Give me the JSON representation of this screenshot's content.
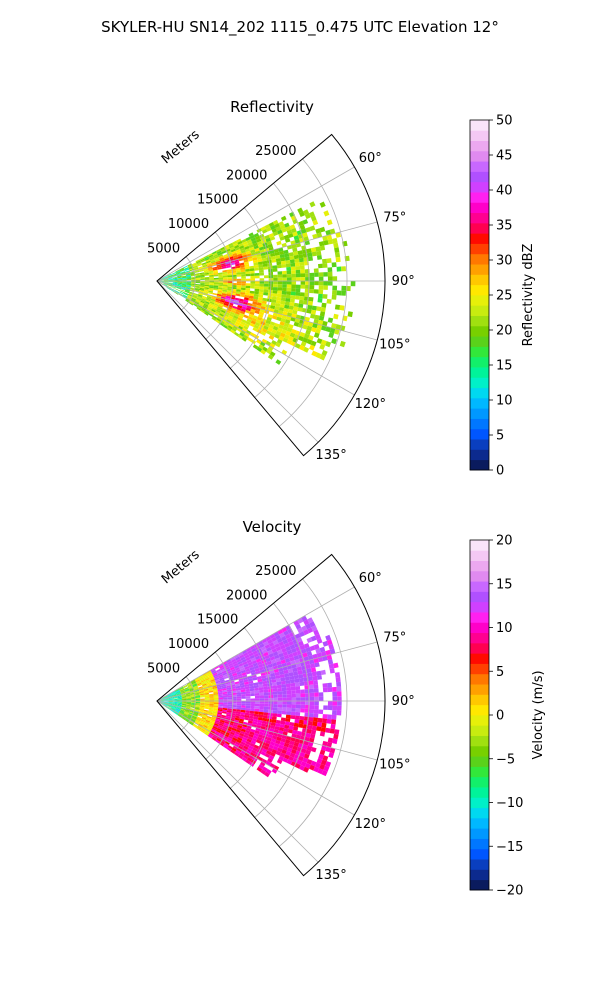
{
  "figure": {
    "title": "SKYLER-HU  SN14_202  1115_0.475 UTC Elevation 12°"
  },
  "chart_data": [
    {
      "type": "heatmap",
      "projection": "polar-sector",
      "title": "Reflectivity",
      "radial_label": "Meters",
      "radial_ticks": [
        5000,
        10000,
        15000,
        20000,
        25000
      ],
      "radial_tick_labels": [
        "5000",
        "10000",
        "15000",
        "20000",
        "25000"
      ],
      "rlim": [
        0,
        30000
      ],
      "angle_ticks": [
        60,
        75,
        90,
        105,
        120,
        135
      ],
      "angle_tick_labels": [
        "60°",
        "75°",
        "90°",
        "105°",
        "120°",
        "135°"
      ],
      "theta_range": [
        50,
        140
      ],
      "grid": true,
      "colorbar": {
        "label": "Reflectivity dBZ",
        "range": [
          0,
          50
        ],
        "ticks": [
          0,
          5,
          10,
          15,
          20,
          25,
          30,
          35,
          40,
          45,
          50
        ],
        "tick_labels": [
          "0",
          "5",
          "10",
          "15",
          "20",
          "25",
          "30",
          "35",
          "40",
          "45",
          "50"
        ],
        "colormap": "NWSRef",
        "colors": [
          "#0a1b5e",
          "#0c2a8e",
          "#0a3fbf",
          "#0056ff",
          "#0077ff",
          "#0098ff",
          "#00b8ff",
          "#00d8f0",
          "#00f0c8",
          "#00f39a",
          "#12f06a",
          "#32e83a",
          "#5ad21a",
          "#78d000",
          "#a0e010",
          "#c8ec10",
          "#e6f00a",
          "#ffe800",
          "#ffc800",
          "#ffa000",
          "#ff7800",
          "#ff4000",
          "#ff0a00",
          "#ff0050",
          "#ff0090",
          "#ff00c8",
          "#ff20f0",
          "#d040ff",
          "#b050ff",
          "#c868ff",
          "#e08af0",
          "#eca8f0",
          "#f4c8f4",
          "#fae4fa"
        ]
      }
    },
    {
      "type": "heatmap",
      "projection": "polar-sector",
      "title": "Velocity",
      "radial_label": "Meters",
      "radial_ticks": [
        5000,
        10000,
        15000,
        20000,
        25000
      ],
      "radial_tick_labels": [
        "5000",
        "10000",
        "15000",
        "20000",
        "25000"
      ],
      "rlim": [
        0,
        30000
      ],
      "angle_ticks": [
        60,
        75,
        90,
        105,
        120,
        135
      ],
      "angle_tick_labels": [
        "60°",
        "75°",
        "90°",
        "105°",
        "120°",
        "135°"
      ],
      "theta_range": [
        50,
        140
      ],
      "grid": true,
      "colorbar": {
        "label": "Velocity (m/s)",
        "range": [
          -20,
          20
        ],
        "ticks": [
          -20,
          -15,
          -10,
          -5,
          0,
          5,
          10,
          15,
          20
        ],
        "tick_labels": [
          "−20",
          "−15",
          "−10",
          "−5",
          "0",
          "5",
          "10",
          "15",
          "20"
        ],
        "colormap": "NWSRef",
        "colors": [
          "#0a1b5e",
          "#0c2a8e",
          "#0a3fbf",
          "#0056ff",
          "#0077ff",
          "#0098ff",
          "#00b8ff",
          "#00d8f0",
          "#00f0c8",
          "#00f39a",
          "#12f06a",
          "#32e83a",
          "#5ad21a",
          "#78d000",
          "#a0e010",
          "#c8ec10",
          "#e6f00a",
          "#ffe800",
          "#ffc800",
          "#ffa000",
          "#ff7800",
          "#ff4000",
          "#ff0a00",
          "#ff0050",
          "#ff0090",
          "#ff00c8",
          "#ff20f0",
          "#d040ff",
          "#b050ff",
          "#c868ff",
          "#e08af0",
          "#eca8f0",
          "#f4c8f4",
          "#fae4fa"
        ]
      }
    }
  ]
}
